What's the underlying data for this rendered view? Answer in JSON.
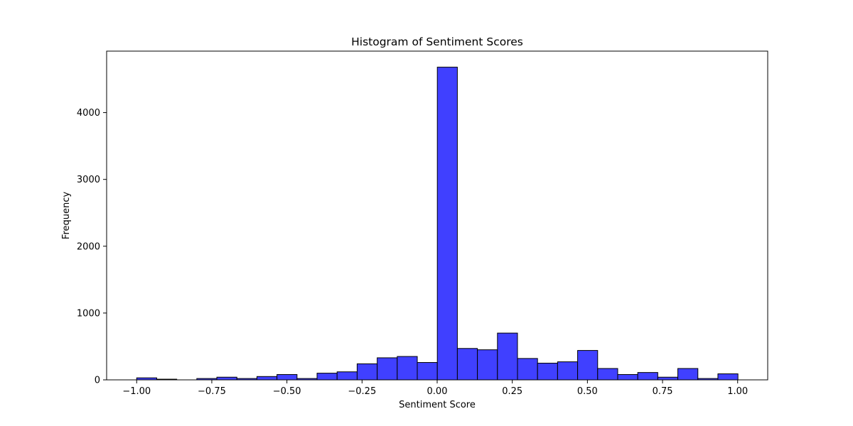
{
  "chart_data": {
    "type": "bar",
    "title": "Histogram of Sentiment Scores",
    "xlabel": "Sentiment Score",
    "ylabel": "Frequency",
    "xlim": [
      -1.1,
      1.1
    ],
    "ylim": [
      0,
      4920
    ],
    "xticks": [
      -1.0,
      -0.75,
      -0.5,
      -0.25,
      0.0,
      0.25,
      0.5,
      0.75,
      1.0
    ],
    "xtick_labels": [
      "−1.00",
      "−0.75",
      "−0.50",
      "−0.25",
      "0.00",
      "0.25",
      "0.50",
      "0.75",
      "1.00"
    ],
    "yticks": [
      0,
      1000,
      2000,
      3000,
      4000
    ],
    "ytick_labels": [
      "0",
      "1000",
      "2000",
      "3000",
      "4000"
    ],
    "bin_width": 0.0667,
    "bin_edges_start": -1.0,
    "values": [
      30,
      10,
      0,
      20,
      40,
      20,
      50,
      80,
      20,
      100,
      120,
      240,
      330,
      350,
      260,
      4680,
      470,
      450,
      700,
      320,
      250,
      270,
      440,
      170,
      80,
      110,
      40,
      170,
      20,
      90
    ],
    "bar_color": "#4040ff",
    "edge_color": "#000000",
    "grid": false,
    "legend": "none"
  }
}
